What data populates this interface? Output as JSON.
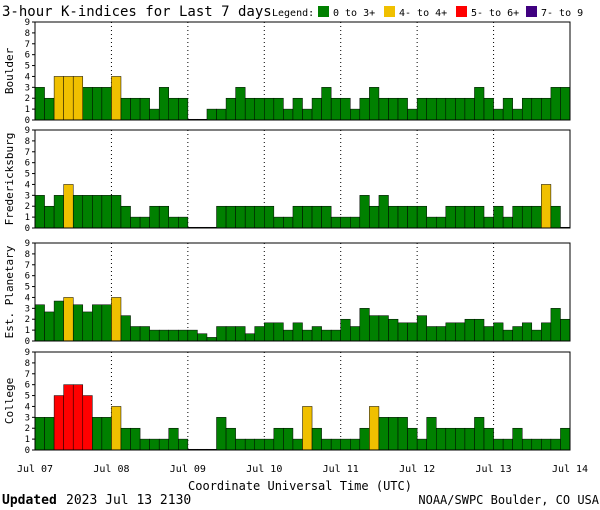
{
  "header": {
    "title": "3-hour K-indices for Last 7 days",
    "legend_label": "Legend:"
  },
  "legend": [
    {
      "label": "0 to 3+",
      "color": "#008000"
    },
    {
      "label": "4- to 4+",
      "color": "#f0c000"
    },
    {
      "label": "5- to 6+",
      "color": "#ff0000"
    },
    {
      "label": "7- to 9",
      "color": "#400080"
    }
  ],
  "footer": {
    "updated_label": "Updated",
    "updated_value": "2023 Jul 13 2130",
    "credit": "NOAA/SWPC Boulder, CO USA"
  },
  "chart_data": {
    "type": "bar",
    "xlabel": "Coordinate Universal Time (UTC)",
    "x_tick_labels": [
      "Jul 07",
      "Jul 08",
      "Jul 09",
      "Jul 10",
      "Jul 11",
      "Jul 12",
      "Jul 13",
      "Jul 14"
    ],
    "ylim": [
      0,
      9
    ],
    "y_ticks": [
      0,
      1,
      2,
      3,
      4,
      5,
      6,
      7,
      8,
      9
    ],
    "grid": true,
    "bins_per_panel": 56,
    "bin_hours": 3,
    "color_thresholds": {
      "green_max": 3.67,
      "yellow_max": 4.67,
      "red_max": 6.67
    },
    "panels": [
      {
        "name": "Boulder",
        "values": [
          3,
          2,
          4,
          4,
          4,
          3,
          3,
          3,
          4,
          2,
          2,
          2,
          1,
          3,
          2,
          2,
          0.07,
          0.07,
          1,
          1,
          2,
          3,
          2,
          2,
          2,
          2,
          1,
          2,
          1,
          2,
          3,
          2,
          2,
          1,
          2,
          3,
          2,
          2,
          2,
          1,
          2,
          2,
          2,
          2,
          2,
          2,
          3,
          2,
          1,
          2,
          1,
          2,
          2,
          2,
          3,
          3
        ]
      },
      {
        "name": "Fredericksburg",
        "values": [
          3,
          2,
          3,
          4,
          3,
          3,
          3,
          3,
          3,
          2,
          1,
          1,
          2,
          2,
          1,
          1,
          0.07,
          0.07,
          0.07,
          2,
          2,
          2,
          2,
          2,
          2,
          1,
          1,
          2,
          2,
          2,
          2,
          1,
          1,
          1,
          3,
          2,
          3,
          2,
          2,
          2,
          2,
          1,
          1,
          2,
          2,
          2,
          2,
          1,
          2,
          1,
          2,
          2,
          2,
          4,
          2,
          0.07
        ]
      },
      {
        "name": "Est. Planetary",
        "values": [
          3.33,
          2.67,
          3.67,
          4,
          3.33,
          2.67,
          3.33,
          3.33,
          4,
          2.33,
          1.33,
          1.33,
          1,
          1,
          1,
          1,
          1,
          0.67,
          0.33,
          1.33,
          1.33,
          1.33,
          0.67,
          1.33,
          1.67,
          1.67,
          1,
          1.67,
          1,
          1.33,
          1,
          1,
          2,
          1.33,
          3,
          2.33,
          2.33,
          2,
          1.67,
          1.67,
          2.33,
          1.33,
          1.33,
          1.67,
          1.67,
          2,
          2,
          1.33,
          1.67,
          1,
          1.33,
          1.67,
          1,
          1.67,
          3,
          2
        ]
      },
      {
        "name": "College",
        "values": [
          3,
          3,
          5,
          6,
          6,
          5,
          3,
          3,
          4,
          2,
          2,
          1,
          1,
          1,
          2,
          1,
          0.07,
          0.07,
          0.07,
          3,
          2,
          1,
          1,
          1,
          1,
          2,
          2,
          1,
          4,
          2,
          1,
          1,
          1,
          1,
          2,
          4,
          3,
          3,
          3,
          2,
          1,
          3,
          2,
          2,
          2,
          2,
          3,
          2,
          1,
          1,
          2,
          1,
          1,
          1,
          1,
          2
        ]
      }
    ]
  }
}
